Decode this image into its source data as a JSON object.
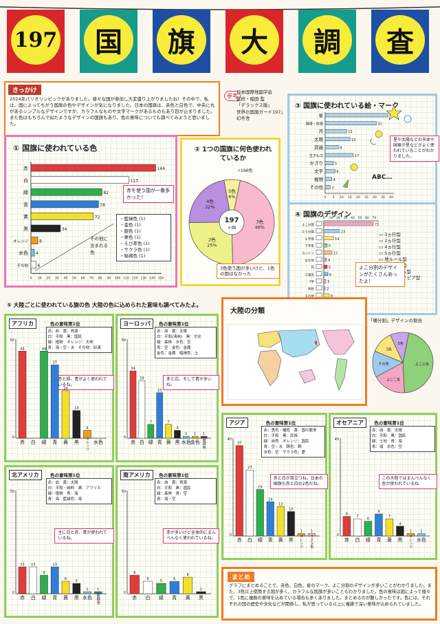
{
  "banner": {
    "chars": [
      "197",
      "国",
      "旗",
      "大",
      "調",
      "査"
    ],
    "flag_colors": [
      "#d8262b",
      "#169c8c",
      "#1f4fa3",
      "#d8262b",
      "#169c8c",
      "#1f4fa3"
    ]
  },
  "kikkake": {
    "tag": "きっかけ",
    "text": "2024年パリオリンピックがありました。様々な国が参加し大変盛り上がりましたね！その中で、私は、国によってちがう国旗の色やデザインが気になりました。日本の国旗は、赤色と白色で、中央に丸があるシンプルなデザインですが、カラフルなものや文字マークがあるものもあり目が止まりました。また色はもちろんで似たようなデザインの国旗もあり、色の意味についても調べてみようと思いました。"
  },
  "reference": {
    "tag": "参考",
    "lines": [
      "日本国際地図学会",
      "監修・稲田 監",
      "「デラックス版」",
      "世界の国旗カード197」",
      "幻冬舎"
    ]
  },
  "sec1": {
    "title": "① 国旗に使われている色",
    "bars": [
      {
        "label": "赤",
        "value": 144,
        "color": "#e23b3b"
      },
      {
        "label": "白",
        "value": 113,
        "color": "#ffffff"
      },
      {
        "label": "緑",
        "value": 82,
        "color": "#2fae4e"
      },
      {
        "label": "青",
        "value": 78,
        "color": "#2f7fd9"
      },
      {
        "label": "黄",
        "value": 72,
        "color": "#f3e02a"
      },
      {
        "label": "黒",
        "value": 34,
        "color": "#222222"
      },
      {
        "label": "オレンジ",
        "value": 8,
        "color": "#f39a1e"
      },
      {
        "label": "水色",
        "value": 4,
        "color": "#6ec6ee"
      },
      {
        "label": "その他",
        "value": 6,
        "color": "#ffffff"
      }
    ],
    "ticks": [
      "0",
      "10",
      "20",
      "30",
      "40",
      "50",
      "60",
      "70",
      "80",
      "90",
      "100",
      "110",
      "120",
      "130",
      "140",
      "150"
    ],
    "note": "赤を使う国が一番多かった！",
    "other_title": "その他に含まれる色",
    "other_list": [
      "藍緑色 (1)",
      "金色 (1)",
      "銀色 (1)",
      "栗色 (1)",
      "えび茶色 (1)",
      "サクラ色 (1)",
      "暗褐色 (1)"
    ]
  },
  "sec2": {
    "title": "② 1つの国旗に何色使われているか",
    "unit": "÷196色",
    "center": "197",
    "center_sub": "ヶ国",
    "slices": [
      {
        "label": "3色",
        "pct": "46%",
        "value": 46,
        "color": "#f7b9cb"
      },
      {
        "label": "2色",
        "pct": "25%",
        "value": 25,
        "color": "#eef18a"
      },
      {
        "label": "4色",
        "pct": "22%",
        "value": 22,
        "color": "#b98fe0"
      },
      {
        "label": "5色",
        "pct": "6%",
        "value": 6,
        "color": "#f6f0a0"
      }
    ],
    "note": "3色使う国が多いけど、1色の国はなかった"
  },
  "sec3": {
    "title": "③ 国旗に使われている絵・マーク",
    "bars": [
      {
        "label": "星",
        "value": 38
      },
      {
        "label": "国章・紋章",
        "value": 31
      },
      {
        "label": "月",
        "value": 13
      },
      {
        "label": "太陽",
        "value": 15
      },
      {
        "label": "武器",
        "value": 8
      },
      {
        "label": "生きもの",
        "value": 17
      },
      {
        "label": "かざり",
        "value": 5
      },
      {
        "label": "文字",
        "value": 6
      },
      {
        "label": "植物",
        "value": 4
      },
      {
        "label": "その他",
        "value": 3
      }
    ],
    "ticks": [
      "0",
      "5",
      "10",
      "15",
      "20",
      "25",
      "30",
      "35",
      "40"
    ],
    "abc": "ABC…",
    "note": "星や太陽などの天体や国章が星などがよく使われていることがわかりました。"
  },
  "sec4": {
    "title": "④ 国旗のデザイン",
    "rows": [
      "よこ分割",
      "たて分割",
      "十字系",
      "下字系",
      "カントン",
      "ななめ",
      "円",
      "三角形",
      "T字",
      "枠形",
      "その他"
    ],
    "values": [
      72,
      23,
      14,
      5,
      12,
      4,
      5,
      6,
      3,
      2,
      8
    ],
    "ticks": [
      "0",
      "10",
      "20",
      "30",
      "40",
      "50",
      "60",
      "70"
    ],
    "legend": [
      "3ヵ行型",
      "2ヵ行型",
      "4ヵ行型",
      "5ヵ行型",
      "地ルール型",
      "中央位置型",
      "エンブレム型",
      "スカンジナビア型"
    ],
    "note": "よこ分割のデザインがたくさんあったよ！"
  },
  "sec4b": {
    "title": "「横分割」デザインの割合",
    "slices": [
      {
        "label": "よこ三色",
        "value": 46,
        "color": "#8fd07a"
      },
      {
        "label": "よこ二色",
        "value": 18,
        "color": "#f4a6c4"
      },
      {
        "label": "その他",
        "value": 14,
        "color": "#9ec9f0"
      },
      {
        "label": "3色",
        "value": 12,
        "color": "#f7e57a"
      },
      {
        "label": "5色",
        "value": 10,
        "color": "#c8a4ea"
      }
    ]
  },
  "sec5": {
    "title": "⑤ 大陸ごとに使われている旗の色 大陸の色に込められた意味も調べてみたよ。"
  },
  "map": {
    "title": "大陸の分類"
  },
  "continents": [
    {
      "name": "アフリカ",
      "head": "色の意味第1位",
      "meanings": "赤：血　黄：資源\n白：平和　黒：国民\n緑：植物　オレンジ：大地\n青：海・空・水　その他：砂漠",
      "labels": [
        "赤",
        "白",
        "緑",
        "青",
        "黄",
        "黒",
        "オレンジ",
        "水色"
      ],
      "values": [
        44,
        0,
        44,
        37,
        24,
        14,
        4,
        0
      ],
      "note": "赤と緑、青がよく使われているね。"
    },
    {
      "name": "ヨーロッパ",
      "head": "色の意味第1位",
      "meanings": "赤：血　黄：太陽\n白：平和(清純)　黒：文化\n緑：森林　水色：空\n青：空　金色：金属\n金色：金属　暗褐色：土",
      "labels": [
        "赤",
        "白",
        "緑",
        "青",
        "黄",
        "黒",
        "水色",
        "金色",
        "暗褐色"
      ],
      "values": [
        34,
        29,
        7,
        23,
        7,
        4,
        1,
        1,
        1
      ],
      "note": "赤と白、そして青が多いね。"
    },
    {
      "name": "アジア",
      "head": "色の意味第1位",
      "meanings": "赤：勇気・犠牲　黄：国の繁栄\n白：平和　黒：民族\n緑：自然　オレンジ：国民\n青：空・水　銅色：銅\n水色：空　サクラ色：愛",
      "labels": [
        "赤",
        "白",
        "緑",
        "青",
        "黄",
        "黒",
        "オレンジ",
        "サクラ色"
      ],
      "values": [
        37,
        27,
        19,
        14,
        12,
        10,
        1,
        1
      ],
      "note": "赤と白が目立つね。日本の国旗も赤と白の2色だね。"
    },
    {
      "name": "オセアニア",
      "head": "色の意味第1位",
      "meanings": "赤：血　黄：太陽\n白：平和　黒：国民\n緑：土地　青：海\n青：海　水色：空",
      "labels": [
        "赤",
        "白",
        "緑",
        "青",
        "黄",
        "黒",
        "オレンジ",
        "水色"
      ],
      "values": [
        8,
        7,
        6,
        9,
        7,
        4,
        1,
        1
      ],
      "note": "この大陸ではまんべんなく色が使われているね"
    },
    {
      "name": "北アメリカ",
      "head": "色の意味第1位",
      "meanings": "赤：血　黄：太陽\n白：平和・純粋　黒：アフリカ\n緑：植物　青：海\n青：海　藍緑色：海",
      "labels": [
        "赤",
        "白",
        "緑",
        "青",
        "黄",
        "黒",
        "水色",
        "藍緑色"
      ],
      "values": [
        13,
        13,
        9,
        13,
        6,
        5,
        1,
        1
      ],
      "note": "主に白と赤、青が使われているね。"
    },
    {
      "name": "南アメリカ",
      "head": "色の意味第1位",
      "meanings": "赤：血　黄：資源\n白：平和　黒：国民\n緑：森林　青：空\n青：海・空",
      "labels": [
        "赤",
        "白",
        "緑",
        "青",
        "黄",
        "黒"
      ],
      "values": [
        9,
        6,
        5,
        6,
        8,
        1
      ],
      "note": "赤が多いけど全体的にまんべんなく使われているね。"
    }
  ],
  "matome": {
    "tag": "まとめ",
    "text": "グラフにまとめることで、赤色、白色、星のマーク、よこ分割のデザインが多いことがわかりました。また、3色以上使用する国が多く、カラフルな国旗が多いこともわかりました。色の意味は国によって様々で、1色に複数の意味を込めている場合も多くありました。まとめるのが難しかったです。色には、それぞれの国の歴史や文化などが関係し、私が思っている以上に複雑で深い意味が込められていました。"
  }
}
